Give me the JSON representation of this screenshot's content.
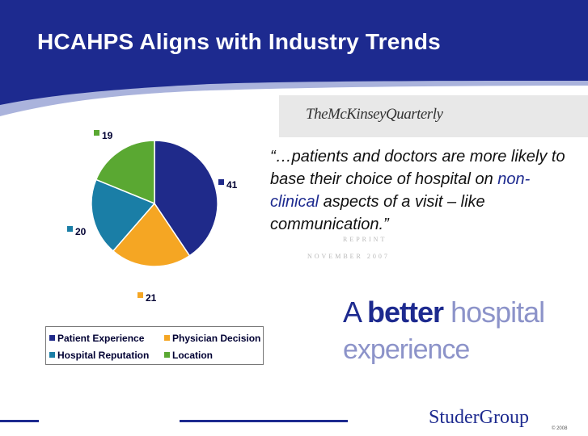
{
  "slide": {
    "title": "HCAHPS Aligns with Industry Trends"
  },
  "mckinsey": {
    "logo_text": "TheMcKinseyQuarterly"
  },
  "quote": {
    "part1": "“…patients and doctors are more likely to base their choice of hospital on ",
    "highlight": "non-clinical",
    "part2": " aspects of a visit – like communication.”"
  },
  "article": {
    "faint_line1": "REPRINT",
    "faint_line2": "NOVEMBER 2007",
    "headline_a": "A ",
    "headline_bold": "better",
    "headline_rest": " hospital",
    "headline_line2": "experience"
  },
  "footer": {
    "logo": "StuderGroup",
    "sub": "© 2008"
  },
  "colors": {
    "header": "#1d2a8f",
    "patient_experience": "#1f2a8a",
    "physician_decision": "#f5a623",
    "hospital_reputation": "#1a7ea6",
    "location": "#5aa832"
  },
  "chart_data": {
    "type": "pie",
    "title": "",
    "categories": [
      "Patient Experience",
      "Physician Decision",
      "Hospital Reputation",
      "Location"
    ],
    "values": [
      41,
      21,
      20,
      19
    ],
    "slice_order_clockwise_from_top": [
      "Patient Experience",
      "Physician Decision",
      "Hospital Reputation",
      "Location"
    ],
    "data_labels": [
      "41",
      "21",
      "20",
      "19"
    ],
    "legend": {
      "placement": "bottom",
      "entries": [
        "Patient Experience",
        "Physician Decision",
        "Hospital Reputation",
        "Location"
      ]
    }
  }
}
